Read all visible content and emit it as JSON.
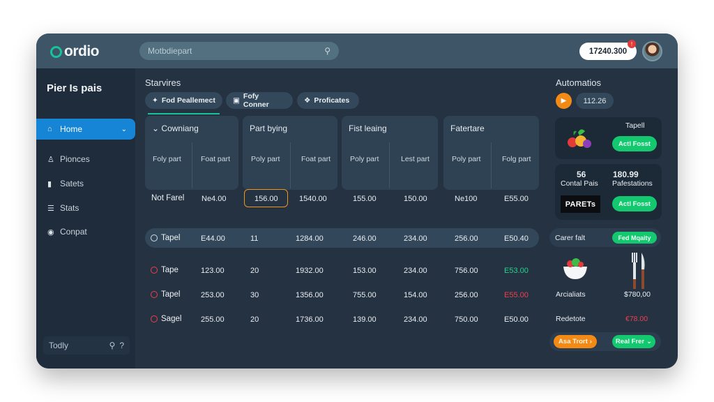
{
  "topbar": {
    "logo": "ordio",
    "search_placeholder": "Motbdiepart",
    "balance": "17240.300",
    "notification_count": "!"
  },
  "sidebar": {
    "title": "Pier Is pais",
    "items": [
      {
        "label": "Home",
        "icon": "home-icon",
        "active": true
      },
      {
        "label": "Pionces",
        "icon": "people-icon"
      },
      {
        "label": "Satets",
        "icon": "folder-icon"
      },
      {
        "label": "Stats",
        "icon": "list-icon"
      },
      {
        "label": "Conpat",
        "icon": "location-pin-icon"
      }
    ],
    "footer": {
      "label": "Todly",
      "icons": [
        "search-icon",
        "help-icon"
      ]
    }
  },
  "main": {
    "section_label": "Starvires",
    "tabs": [
      {
        "label": "Fod Peallemect",
        "icon": "flame-icon",
        "active": true
      },
      {
        "label": "Fofy Conner",
        "icon": "card-icon"
      },
      {
        "label": "Proficates",
        "icon": "tag-icon"
      }
    ],
    "columns": [
      {
        "title": "Cowniang",
        "has_chevron": true,
        "subs": [
          "Foly part",
          "Foat part"
        ]
      },
      {
        "title": "Part bying",
        "subs": [
          "Poly part",
          "Foat part"
        ]
      },
      {
        "title": "Fist leaing",
        "subs": [
          "Poly part",
          "Lest part"
        ]
      },
      {
        "title": "Fatertare",
        "subs": [
          "Poly part",
          "Folg part"
        ]
      }
    ],
    "header_row": {
      "label": "Not Farel",
      "values": [
        "Ne4.00",
        "156.00",
        "1540.00",
        "155.00",
        "150.00",
        "Ne100",
        "E55.00"
      ]
    },
    "rows": [
      {
        "label": "Tapel",
        "marker": "ring",
        "values": [
          "E44.00",
          "11",
          "1284.00",
          "246.00",
          "234.00",
          "256.00",
          "E50.40"
        ],
        "highlight": true
      },
      {
        "label": "Tape",
        "marker": "ring-red",
        "values": [
          "123.00",
          "20",
          "1932.00",
          "153.00",
          "234.00",
          "756.00",
          "E53.00"
        ],
        "last_color": "green"
      },
      {
        "label": "Tapel",
        "marker": "ring-red",
        "values": [
          "253.00",
          "30",
          "1356.00",
          "755.00",
          "154.00",
          "256.00",
          "E55.00"
        ],
        "last_color": "red"
      },
      {
        "label": "Sagel",
        "marker": "ring-red",
        "values": [
          "255.00",
          "20",
          "1736.00",
          "139.00",
          "234.00",
          "750.00",
          "E50.00"
        ]
      }
    ]
  },
  "right": {
    "title": "Automatios",
    "count": "112.26",
    "card1": {
      "label": "Tapell",
      "button": "Actl Fosst"
    },
    "card2": {
      "stat1_value": "56",
      "stat1_label": "Contal Pais",
      "stat2_value": "180.99",
      "stat2_label": "Pafestations",
      "brand": "PARETs",
      "button": "Actl Fosst"
    },
    "row1": {
      "label": "Carer falt",
      "button": "Fed Mqaity"
    },
    "card3": {
      "left_label": "Arcialiats",
      "right_label": "$780,00",
      "left_icon": "salad-bowl-icon",
      "right_icon": "fork-knife-icon"
    },
    "row2": {
      "label": "Redetote",
      "value": "€78.00"
    },
    "footer": {
      "left_button": "Asa Trort",
      "right_button": "Real Frer"
    }
  },
  "colors": {
    "accent_blue": "#1685d6",
    "accent_green": "#13c86f",
    "accent_orange": "#f28a15",
    "danger_red": "#f03f4d",
    "teal_logo": "#19c39a"
  }
}
